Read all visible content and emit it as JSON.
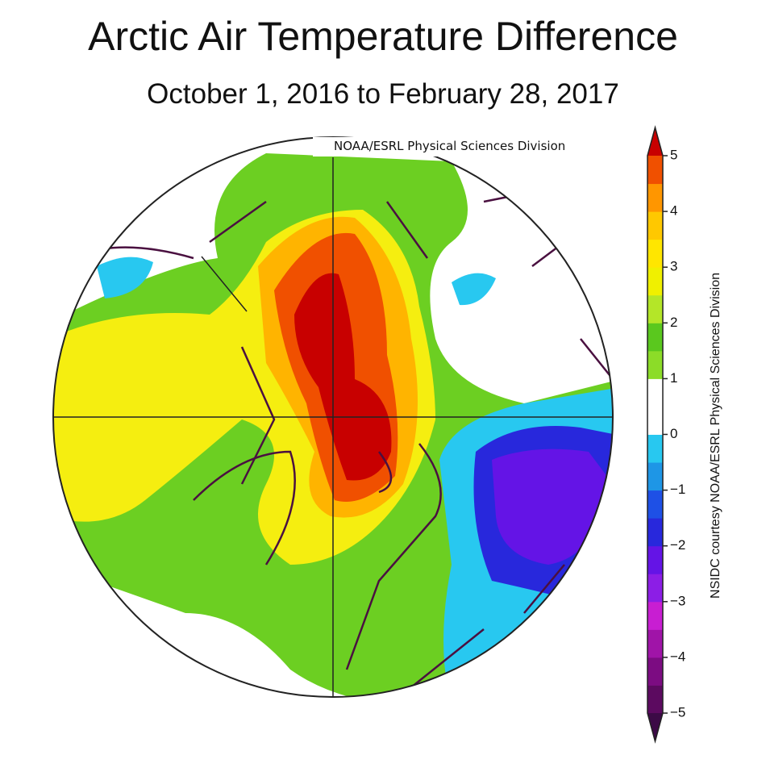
{
  "title": "Arctic Air Temperature Difference",
  "subtitle": "October 1, 2016 to February 28, 2017",
  "attribution": "NOAA/ESRL Physical Sciences Division",
  "credit": "NSIDC courtesy NOAA/ESRL Physical Sciences Division",
  "colorbar": {
    "lim": [
      -5,
      5
    ],
    "ticks": [
      {
        "value": -5,
        "label": "−5"
      },
      {
        "value": -4,
        "label": "−4"
      },
      {
        "value": -3,
        "label": "−3"
      },
      {
        "value": -2,
        "label": "−2"
      },
      {
        "value": -1,
        "label": "−1"
      },
      0,
      1,
      2,
      3,
      4,
      5
    ],
    "colors": [
      "#5c0a60",
      "#7c0c82",
      "#a014a8",
      "#c81ed2",
      "#8c1ee6",
      "#6414e6",
      "#2828dc",
      "#1e50e6",
      "#1e96e6",
      "#28c8f0",
      "#ffffff",
      "#ffffff",
      "#8cdc28",
      "#5ac81e",
      "#b4e628",
      "#f0f000",
      "#ffe600",
      "#ffc800",
      "#ff9600",
      "#f05000"
    ],
    "under_color": "#3c0a46",
    "over_color": "#c80000"
  }
}
